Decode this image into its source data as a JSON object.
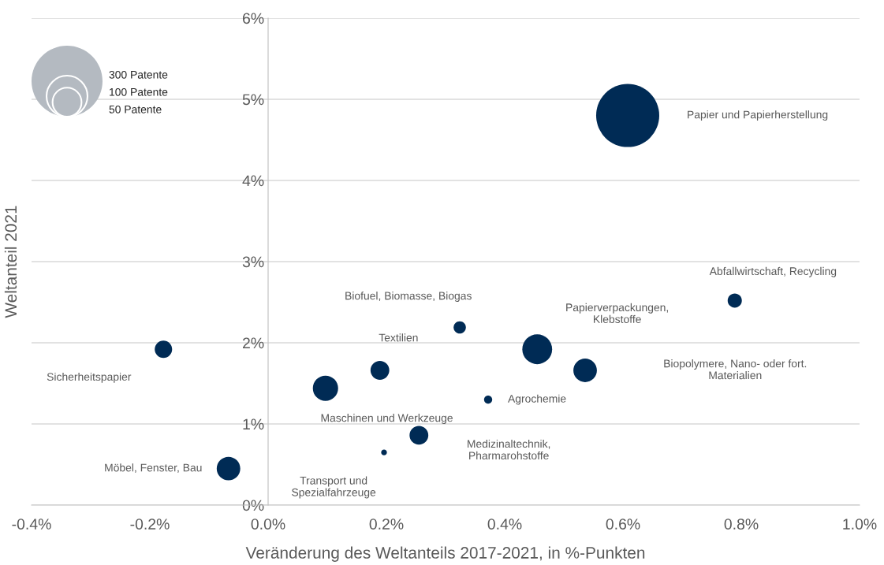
{
  "chart_data": {
    "type": "bubble",
    "xlabel": "Veränderung des Weltanteils 2017-2021, in %-Punkten",
    "ylabel": "Weltanteil 2021",
    "x": [
      0.608,
      0.789,
      0.455,
      0.536,
      0.372,
      0.324,
      0.189,
      0.097,
      -0.177,
      -0.067,
      0.255,
      0.196
    ],
    "values": [
      4.8,
      2.52,
      1.92,
      1.66,
      1.3,
      2.19,
      1.66,
      1.44,
      1.92,
      0.45,
      0.86,
      0.65
    ],
    "sizes": [
      237,
      12,
      53,
      33,
      4,
      9,
      21,
      38,
      18,
      33,
      21,
      2
    ],
    "size_legend": [
      {
        "value": 300,
        "label": "300 Patente"
      },
      {
        "value": 100,
        "label": "100 Patente"
      },
      {
        "value": 50,
        "label": "50 Patente"
      }
    ],
    "color": "#002b55",
    "xlim": [
      -0.4,
      1.0
    ],
    "xticks": [
      {
        "value": -0.4,
        "label": "-0.4%"
      },
      {
        "value": -0.2,
        "label": "-0.2%"
      },
      {
        "value": 0.0,
        "label": "0.0%"
      },
      {
        "value": 0.2,
        "label": "0.2%"
      },
      {
        "value": 0.4,
        "label": "0.4%"
      },
      {
        "value": 0.6,
        "label": "0.6%"
      },
      {
        "value": 0.8,
        "label": "0.8%"
      },
      {
        "value": 1.0,
        "label": "1.0%"
      }
    ],
    "ylim": [
      0,
      6
    ],
    "yticks": [
      {
        "value": 0,
        "label": "0%"
      },
      {
        "value": 1,
        "label": "1%"
      },
      {
        "value": 2,
        "label": "2%"
      },
      {
        "value": 3,
        "label": "3%"
      },
      {
        "value": 4,
        "label": "4%"
      },
      {
        "value": 5,
        "label": "5%"
      },
      {
        "value": 6,
        "label": "6%"
      }
    ],
    "grid": "y",
    "annotations": [
      "Papier und Papierherstellung",
      "Abfallwirtschaft, Recycling",
      "Papierverpackungen,\nKlebstoffe",
      "Biopolymere, Nano- oder fort.\nMaterialien",
      "Agrochemie",
      "Biofuel, Biomasse, Biogas",
      "Textilien",
      "Maschinen und Werkzeuge",
      "Sicherheitspapier",
      "Möbel, Fenster, Bau",
      "Medizinaltechnik,\nPharmarohstoffe",
      "Transport und\nSpezialfahrzeuge"
    ]
  }
}
